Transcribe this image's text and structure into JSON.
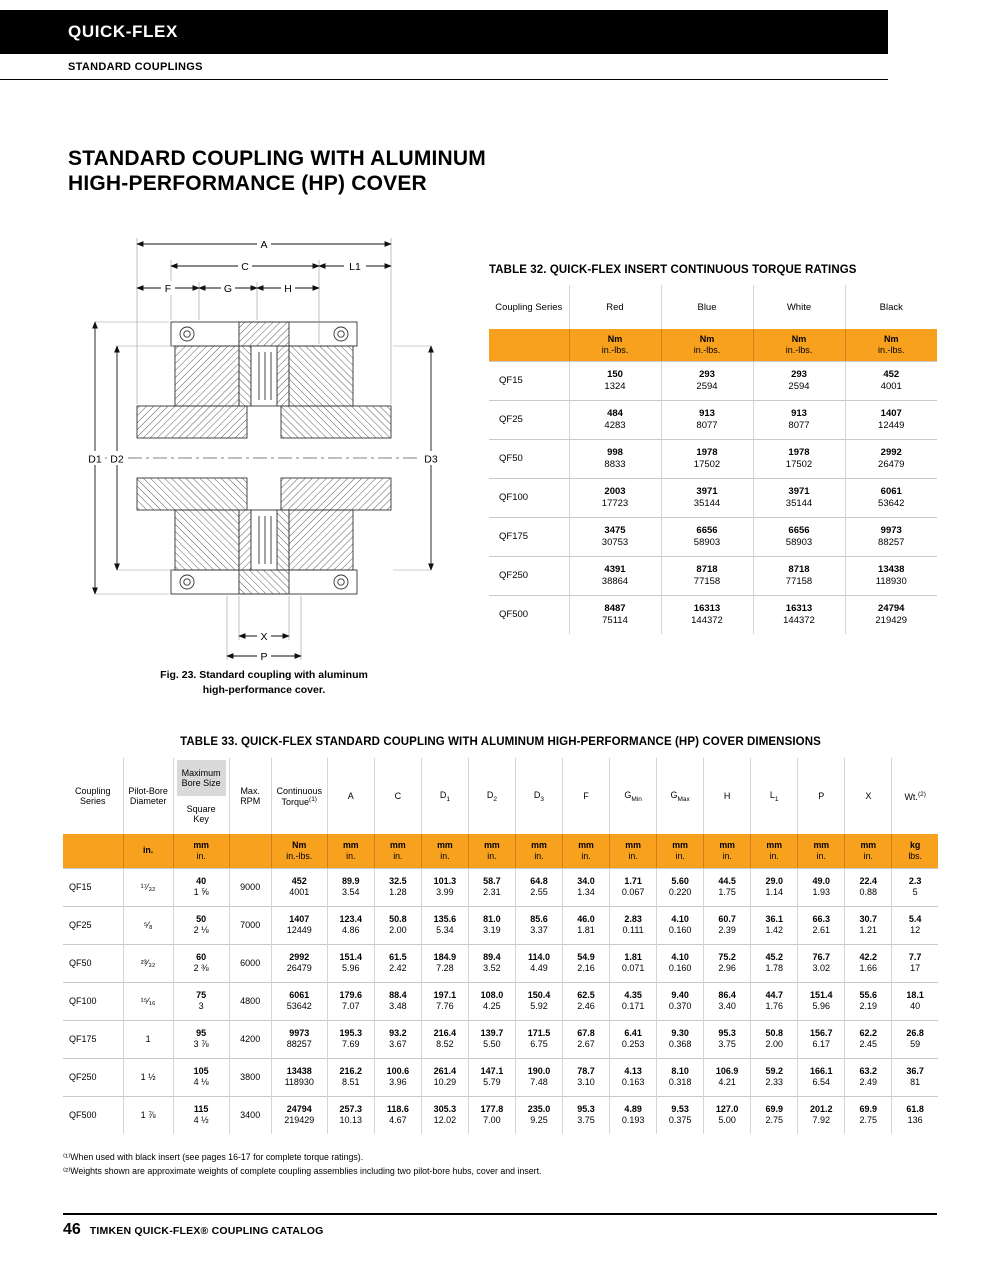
{
  "page": {
    "brand_bar": "QUICK-FLEX",
    "sub_bar": "STANDARD COUPLINGS",
    "title_line1": "STANDARD COUPLING WITH ALUMINUM",
    "title_line2": "HIGH-PERFORMANCE (HP) COVER",
    "footer_page_number": "46",
    "footer_text": "TIMKEN QUICK-FLEX® COUPLING CATALOG"
  },
  "figure": {
    "caption_line1": "Fig. 23. Standard coupling with aluminum",
    "caption_line2": "high-performance cover.",
    "labels": {
      "A": "A",
      "C": "C",
      "L1": "L1",
      "F": "F",
      "G": "G",
      "H": "H",
      "D1": "D1",
      "D2": "D2",
      "D3": "D3",
      "X": "X",
      "P": "P"
    }
  },
  "table32": {
    "title": "TABLE 32. QUICK-FLEX INSERT CONTINUOUS TORQUE RATINGS",
    "col_series": "Coupling Series",
    "insert_colors": [
      "Red",
      "Blue",
      "White",
      "Black"
    ],
    "unit_metric": "Nm",
    "unit_imperial": "in.-lbs.",
    "rows": [
      {
        "series": "QF15",
        "values": [
          [
            "150",
            "1324"
          ],
          [
            "293",
            "2594"
          ],
          [
            "293",
            "2594"
          ],
          [
            "452",
            "4001"
          ]
        ]
      },
      {
        "series": "QF25",
        "values": [
          [
            "484",
            "4283"
          ],
          [
            "913",
            "8077"
          ],
          [
            "913",
            "8077"
          ],
          [
            "1407",
            "12449"
          ]
        ]
      },
      {
        "series": "QF50",
        "values": [
          [
            "998",
            "8833"
          ],
          [
            "1978",
            "17502"
          ],
          [
            "1978",
            "17502"
          ],
          [
            "2992",
            "26479"
          ]
        ]
      },
      {
        "series": "QF100",
        "values": [
          [
            "2003",
            "17723"
          ],
          [
            "3971",
            "35144"
          ],
          [
            "3971",
            "35144"
          ],
          [
            "6061",
            "53642"
          ]
        ]
      },
      {
        "series": "QF175",
        "values": [
          [
            "3475",
            "30753"
          ],
          [
            "6656",
            "58903"
          ],
          [
            "6656",
            "58903"
          ],
          [
            "9973",
            "88257"
          ]
        ]
      },
      {
        "series": "QF250",
        "values": [
          [
            "4391",
            "38864"
          ],
          [
            "8718",
            "77158"
          ],
          [
            "8718",
            "77158"
          ],
          [
            "13438",
            "118930"
          ]
        ]
      },
      {
        "series": "QF500",
        "values": [
          [
            "8487",
            "75114"
          ],
          [
            "16313",
            "144372"
          ],
          [
            "16313",
            "144372"
          ],
          [
            "24794",
            "219429"
          ]
        ]
      }
    ]
  },
  "table33": {
    "title": "TABLE 33. QUICK-FLEX STANDARD COUPLING WITH ALUMINUM HIGH-PERFORMANCE (HP) COVER DIMENSIONS",
    "headers": {
      "series": "Coupling Series",
      "pilot": "Pilot-Bore Diameter",
      "bore_top": "Maximum Bore Size",
      "bore_bottom": "Square Key",
      "rpm": "Max. RPM",
      "torque_main": "Continuous Torque",
      "torque_sup": "(1)",
      "a": "A",
      "c": "C",
      "d_main": "D",
      "d1_sub": "1",
      "d2_sub": "2",
      "d3_sub": "3",
      "f": "F",
      "g_main": "G",
      "g_min_sub": "Min",
      "g_max_sub": "Max",
      "h": "H",
      "l1_main": "L",
      "l1_sub": "1",
      "p": "P",
      "x": "X",
      "wt_main": "Wt.",
      "wt_sup": "(2)"
    },
    "units": {
      "series": [
        "",
        ""
      ],
      "pilot": [
        "in.",
        ""
      ],
      "bore": [
        "mm",
        "in."
      ],
      "rpm": [
        "",
        ""
      ],
      "torque": [
        "Nm",
        "in.-lbs."
      ],
      "dim": [
        "mm",
        "in."
      ],
      "wt": [
        "kg",
        "lbs."
      ]
    },
    "rows": [
      {
        "series": "QF15",
        "pilot": "¹⁷⁄₃₂",
        "bore": [
          "40",
          "1 ⅝"
        ],
        "rpm": "9000",
        "vals": [
          [
            "452",
            "4001"
          ],
          [
            "89.9",
            "3.54"
          ],
          [
            "32.5",
            "1.28"
          ],
          [
            "101.3",
            "3.99"
          ],
          [
            "58.7",
            "2.31"
          ],
          [
            "64.8",
            "2.55"
          ],
          [
            "34.0",
            "1.34"
          ],
          [
            "1.71",
            "0.067"
          ],
          [
            "5.60",
            "0.220"
          ],
          [
            "44.5",
            "1.75"
          ],
          [
            "29.0",
            "1.14"
          ],
          [
            "49.0",
            "1.93"
          ],
          [
            "22.4",
            "0.88"
          ],
          [
            "2.3",
            "5"
          ]
        ]
      },
      {
        "series": "QF25",
        "pilot": "⁵⁄₈",
        "bore": [
          "50",
          "2 ⅛"
        ],
        "rpm": "7000",
        "vals": [
          [
            "1407",
            "12449"
          ],
          [
            "123.4",
            "4.86"
          ],
          [
            "50.8",
            "2.00"
          ],
          [
            "135.6",
            "5.34"
          ],
          [
            "81.0",
            "3.19"
          ],
          [
            "85.6",
            "3.37"
          ],
          [
            "46.0",
            "1.81"
          ],
          [
            "2.83",
            "0.111"
          ],
          [
            "4.10",
            "0.160"
          ],
          [
            "60.7",
            "2.39"
          ],
          [
            "36.1",
            "1.42"
          ],
          [
            "66.3",
            "2.61"
          ],
          [
            "30.7",
            "1.21"
          ],
          [
            "5.4",
            "12"
          ]
        ]
      },
      {
        "series": "QF50",
        "pilot": "²³⁄₃₂",
        "bore": [
          "60",
          "2 ⅜"
        ],
        "rpm": "6000",
        "vals": [
          [
            "2992",
            "26479"
          ],
          [
            "151.4",
            "5.96"
          ],
          [
            "61.5",
            "2.42"
          ],
          [
            "184.9",
            "7.28"
          ],
          [
            "89.4",
            "3.52"
          ],
          [
            "114.0",
            "4.49"
          ],
          [
            "54.9",
            "2.16"
          ],
          [
            "1.81",
            "0.071"
          ],
          [
            "4.10",
            "0.160"
          ],
          [
            "75.2",
            "2.96"
          ],
          [
            "45.2",
            "1.78"
          ],
          [
            "76.7",
            "3.02"
          ],
          [
            "42.2",
            "1.66"
          ],
          [
            "7.7",
            "17"
          ]
        ]
      },
      {
        "series": "QF100",
        "pilot": "¹⁵⁄₁₆",
        "bore": [
          "75",
          "3"
        ],
        "rpm": "4800",
        "vals": [
          [
            "6061",
            "53642"
          ],
          [
            "179.6",
            "7.07"
          ],
          [
            "88.4",
            "3.48"
          ],
          [
            "197.1",
            "7.76"
          ],
          [
            "108.0",
            "4.25"
          ],
          [
            "150.4",
            "5.92"
          ],
          [
            "62.5",
            "2.46"
          ],
          [
            "4.35",
            "0.171"
          ],
          [
            "9.40",
            "0.370"
          ],
          [
            "86.4",
            "3.40"
          ],
          [
            "44.7",
            "1.76"
          ],
          [
            "151.4",
            "5.96"
          ],
          [
            "55.6",
            "2.19"
          ],
          [
            "18.1",
            "40"
          ]
        ]
      },
      {
        "series": "QF175",
        "pilot": "1",
        "bore": [
          "95",
          "3 ⅞"
        ],
        "rpm": "4200",
        "vals": [
          [
            "9973",
            "88257"
          ],
          [
            "195.3",
            "7.69"
          ],
          [
            "93.2",
            "3.67"
          ],
          [
            "216.4",
            "8.52"
          ],
          [
            "139.7",
            "5.50"
          ],
          [
            "171.5",
            "6.75"
          ],
          [
            "67.8",
            "2.67"
          ],
          [
            "6.41",
            "0.253"
          ],
          [
            "9.30",
            "0.368"
          ],
          [
            "95.3",
            "3.75"
          ],
          [
            "50.8",
            "2.00"
          ],
          [
            "156.7",
            "6.17"
          ],
          [
            "62.2",
            "2.45"
          ],
          [
            "26.8",
            "59"
          ]
        ]
      },
      {
        "series": "QF250",
        "pilot": "1 ½",
        "bore": [
          "105",
          "4 ⅛"
        ],
        "rpm": "3800",
        "vals": [
          [
            "13438",
            "118930"
          ],
          [
            "216.2",
            "8.51"
          ],
          [
            "100.6",
            "3.96"
          ],
          [
            "261.4",
            "10.29"
          ],
          [
            "147.1",
            "5.79"
          ],
          [
            "190.0",
            "7.48"
          ],
          [
            "78.7",
            "3.10"
          ],
          [
            "4.13",
            "0.163"
          ],
          [
            "8.10",
            "0.318"
          ],
          [
            "106.9",
            "4.21"
          ],
          [
            "59.2",
            "2.33"
          ],
          [
            "166.1",
            "6.54"
          ],
          [
            "63.2",
            "2.49"
          ],
          [
            "36.7",
            "81"
          ]
        ]
      },
      {
        "series": "QF500",
        "pilot": "1 ⅞",
        "bore": [
          "115",
          "4 ½"
        ],
        "rpm": "3400",
        "vals": [
          [
            "24794",
            "219429"
          ],
          [
            "257.3",
            "10.13"
          ],
          [
            "118.6",
            "4.67"
          ],
          [
            "305.3",
            "12.02"
          ],
          [
            "177.8",
            "7.00"
          ],
          [
            "235.0",
            "9.25"
          ],
          [
            "95.3",
            "3.75"
          ],
          [
            "4.89",
            "0.193"
          ],
          [
            "9.53",
            "0.375"
          ],
          [
            "127.0",
            "5.00"
          ],
          [
            "69.9",
            "2.75"
          ],
          [
            "201.2",
            "7.92"
          ],
          [
            "69.9",
            "2.75"
          ],
          [
            "61.8",
            "136"
          ]
        ]
      }
    ]
  },
  "footnotes": [
    "⁽¹⁾When used with black insert (see pages 16-17 for complete torque ratings).",
    "⁽²⁾Weights shown are approximate weights of complete coupling assemblies including two pilot-bore hubs, cover and insert."
  ],
  "colors": {
    "accent_orange": "#F7A11F",
    "shade_gray": "#D9D9D9",
    "header_black": "#000000"
  }
}
